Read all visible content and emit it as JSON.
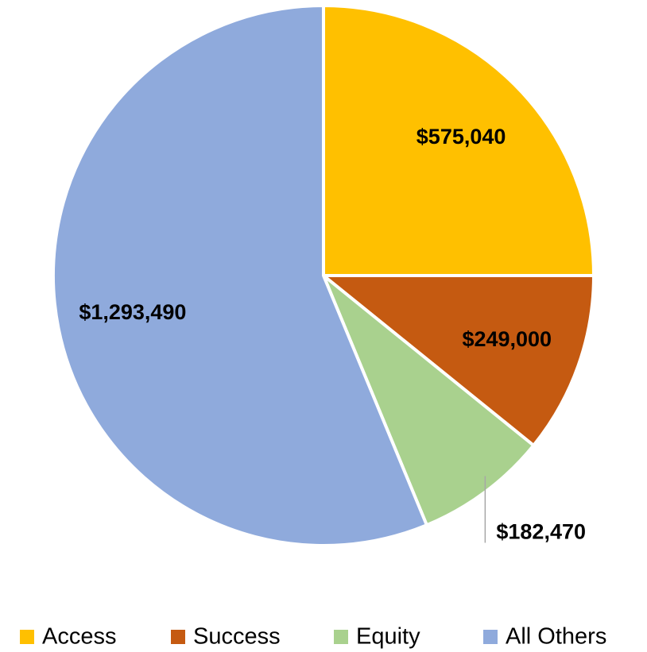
{
  "chart_data": {
    "type": "pie",
    "categories": [
      "Access",
      "Success",
      "Equity",
      "All Others"
    ],
    "values": [
      575040,
      249000,
      182470,
      1293490
    ],
    "value_labels": [
      "$575,040",
      "$249,000",
      "$182,470",
      "$1,293,490"
    ],
    "colors": [
      "#ffc000",
      "#c55a11",
      "#a9d18e",
      "#8faadc"
    ],
    "legend": "bottom"
  }
}
